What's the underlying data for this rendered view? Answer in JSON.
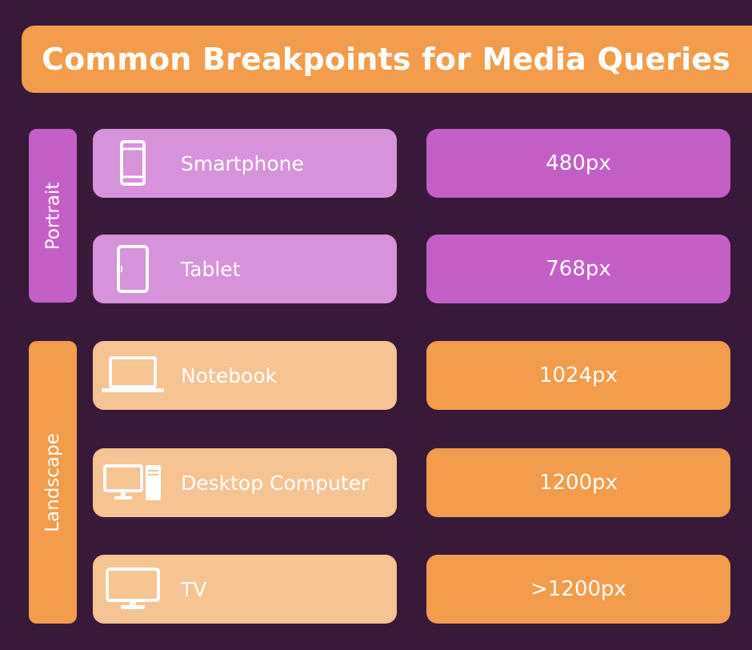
{
  "title": "Common Breakpoints for Media Queries",
  "groups": {
    "portrait": "Portrait",
    "landscape": "Landscape"
  },
  "rows": [
    {
      "device": "Smartphone",
      "breakpoint": "480px",
      "icon": "smartphone-icon",
      "group": "portrait"
    },
    {
      "device": "Tablet",
      "breakpoint": "768px",
      "icon": "tablet-icon",
      "group": "portrait"
    },
    {
      "device": "Notebook",
      "breakpoint": "1024px",
      "icon": "laptop-icon",
      "group": "landscape"
    },
    {
      "device": "Desktop Computer",
      "breakpoint": "1200px",
      "icon": "desktop-computer-icon",
      "group": "landscape"
    },
    {
      "device": "TV",
      "breakpoint": ">1200px",
      "icon": "tv-icon",
      "group": "landscape"
    }
  ],
  "colors": {
    "background": "#371a3a",
    "orange": "#f39c4c",
    "orange_light": "#f6c392",
    "purple": "#c45fc7",
    "purple_light": "#d692da"
  }
}
